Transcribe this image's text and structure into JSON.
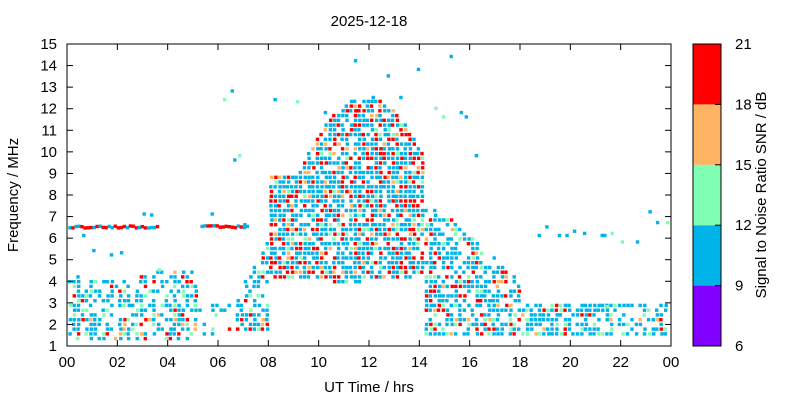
{
  "chart_data": {
    "type": "scatter",
    "title": "2025-12-18",
    "xlabel": "UT Time / hrs",
    "ylabel": "Frequency / MHz",
    "xlim": [
      0,
      24
    ],
    "ylim": [
      1,
      15
    ],
    "x_ticks": [
      "00",
      "02",
      "04",
      "06",
      "08",
      "10",
      "12",
      "14",
      "16",
      "18",
      "20",
      "22",
      "00"
    ],
    "y_ticks": [
      "1",
      "2",
      "3",
      "4",
      "5",
      "6",
      "7",
      "8",
      "9",
      "10",
      "11",
      "12",
      "13",
      "14",
      "15"
    ],
    "grid": false,
    "colorbar": {
      "label": "Signal to Noise Ratio SNR / dB",
      "ticks": [
        "6",
        "9",
        "12",
        "15",
        "18",
        "21"
      ],
      "bands": [
        {
          "from": 6,
          "to": 9,
          "color": "#8000ff"
        },
        {
          "from": 9,
          "to": 12,
          "color": "#00b4ea"
        },
        {
          "from": 12,
          "to": 15,
          "color": "#80ffb4"
        },
        {
          "from": 15,
          "to": 18,
          "color": "#ffb464"
        },
        {
          "from": 18,
          "to": 21,
          "color": "#ff0000"
        }
      ]
    },
    "description_of_density": [
      {
        "t_start": 0.0,
        "t_end": 5.2,
        "f_low": 1.5,
        "f_high": 4.5,
        "note": "low band activity"
      },
      {
        "t_start": 0.0,
        "t_end": 3.6,
        "f_low": 6.5,
        "f_high": 6.7,
        "note": "constant trace near 6.6 MHz"
      },
      {
        "t_start": 5.3,
        "t_end": 7.2,
        "f_low": 6.5,
        "f_high": 6.7,
        "note": "constant trace near 6.6 MHz"
      },
      {
        "t_start": 6.5,
        "t_end": 8.0,
        "f_low": 1.8,
        "f_high": 6.5,
        "note": "rising edge"
      },
      {
        "t_start": 8.0,
        "t_end": 14.0,
        "f_low": 4.0,
        "f_high": 12.7,
        "note": "daytime peak"
      },
      {
        "t_start": 14.0,
        "t_end": 18.0,
        "f_low": 1.6,
        "f_high": 8.0,
        "note": "falling edge"
      },
      {
        "t_start": 18.0,
        "t_end": 24.0,
        "f_low": 1.6,
        "f_high": 3.0,
        "note": "night low band"
      }
    ]
  }
}
